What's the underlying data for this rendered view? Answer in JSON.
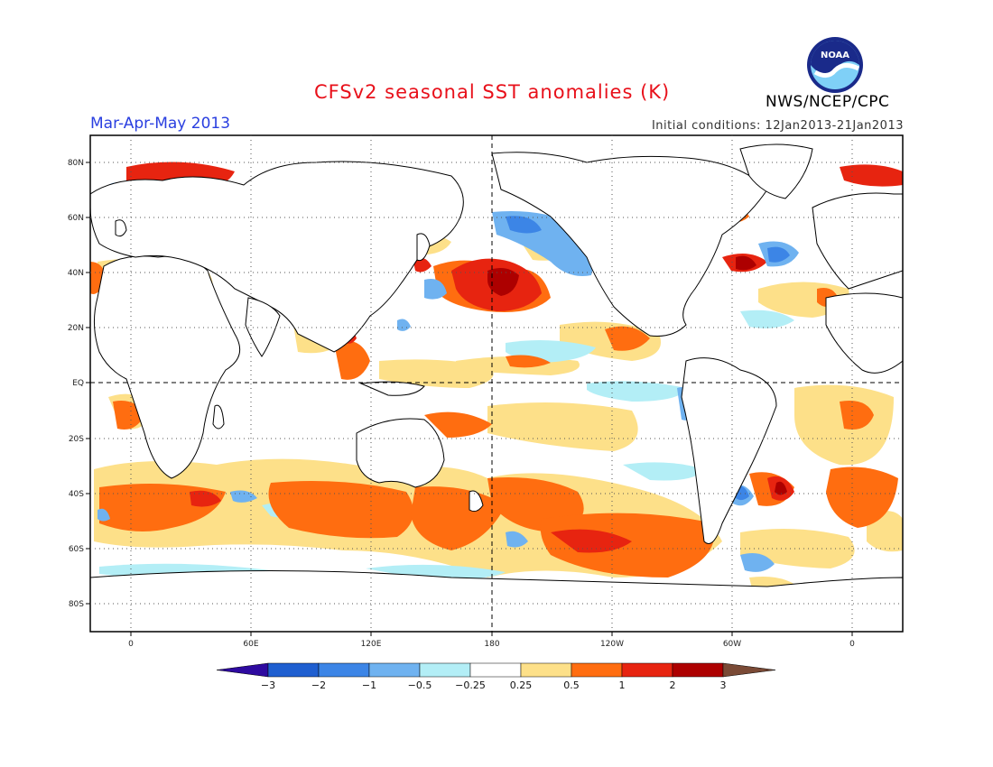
{
  "title": "CFSv2 seasonal SST anomalies (K)",
  "season": "Mar-Apr-May 2013",
  "initial_conditions": "Initial conditions: 12Jan2013-21Jan2013",
  "agency": "NWS/NCEP/CPC",
  "logo_text": "NOAA",
  "colors": {
    "title": "#e8101a",
    "season": "#2a3fe0",
    "frame": "#000000",
    "gridline": "#000000",
    "coast": "#000000"
  },
  "latitude_labels": [
    "80N",
    "60N",
    "40N",
    "20N",
    "EQ",
    "20S",
    "40S",
    "60S",
    "80S"
  ],
  "longitude_labels": [
    "0",
    "60E",
    "120E",
    "180",
    "120W",
    "60W",
    "0"
  ],
  "colorbar": {
    "unit": "K",
    "labels": [
      "−3",
      "−2",
      "−1",
      "−0.5",
      "−0.25",
      "0.25",
      "0.5",
      "1",
      "2",
      "3"
    ],
    "colors": [
      "#2e0aa0",
      "#1f5fd0",
      "#3c85e6",
      "#6fb2f0",
      "#b3eef6",
      "#ffffff",
      "#fde089",
      "#ff6d10",
      "#e72410",
      "#ad0000",
      "#7a4a36"
    ]
  },
  "map_data": {
    "projection": "cylindrical equidistant",
    "lon_range": [
      -20,
      380
    ],
    "lat_range": [
      -90,
      90
    ],
    "note_positive": [
      {
        "region": "North Pacific (east of Japan)",
        "lat": 38,
        "lon": 180,
        "class": "1 to 2"
      },
      {
        "region": "Southern Ocean south of Pacific",
        "lat": -55,
        "lon": 240,
        "class": "1 to 2"
      },
      {
        "region": "South Indian Ocean",
        "lat": -45,
        "lon": 60,
        "class": "0.5 to 1"
      },
      {
        "region": "Western Atlantic Gulf Stream",
        "lat": 40,
        "lon": 300,
        "class": "1 to 3"
      },
      {
        "region": "Barents/Greenland Seas",
        "lat": 75,
        "lon": 20,
        "class": "1 to 2"
      }
    ],
    "note_negative": [
      {
        "region": "Gulf of Alaska",
        "lat": 52,
        "lon": 220,
        "class": "-0.5 to -1"
      },
      {
        "region": "North Atlantic (east of Newfoundland)",
        "lat": 45,
        "lon": 320,
        "class": "-0.5 to -1"
      },
      {
        "region": "Peru coast",
        "lat": -8,
        "lon": 280,
        "class": "-0.5 to -1"
      }
    ]
  }
}
